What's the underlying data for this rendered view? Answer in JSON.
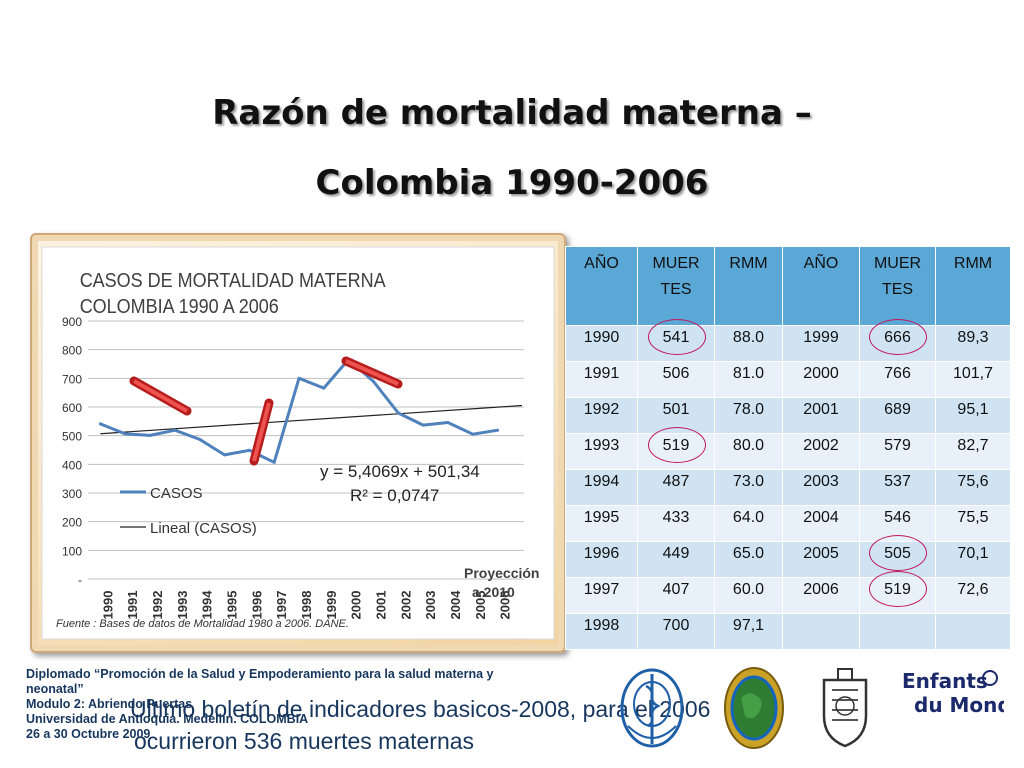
{
  "slide": {
    "title_line1": "Razón de mortalidad materna –",
    "title_line2": "Colombia 1990-2006"
  },
  "chart_data": {
    "type": "line",
    "title": "CASOS DE MORTALIDAD MATERNA COLOMBIA 1990 A 2006",
    "title_line1": "CASOS DE MORTALIDAD MATERNA",
    "title_line2": "COLOMBIA 1990 A 2006",
    "x": [
      "1990",
      "1991",
      "1992",
      "1993",
      "1994",
      "1995",
      "1996",
      "1997",
      "1998",
      "1999",
      "2000",
      "2001",
      "2002",
      "2003",
      "2004",
      "2005",
      "2006"
    ],
    "extra_x_label": "Proyección a 2010",
    "extra_x_label_lines": [
      "Proyección",
      "a 2010"
    ],
    "ylim": [
      0,
      900
    ],
    "yticks": [
      "-",
      "100",
      "200",
      "300",
      "400",
      "500",
      "600",
      "700",
      "800",
      "900"
    ],
    "grid": true,
    "series": [
      {
        "name": "CASOS",
        "color": "#4f81bd",
        "values": [
          541,
          506,
          501,
          519,
          487,
          433,
          449,
          407,
          700,
          666,
          766,
          689,
          579,
          537,
          546,
          505,
          519
        ]
      }
    ],
    "trendline": {
      "name": "Lineal (CASOS)",
      "slope": 5.4069,
      "intercept": 501.34,
      "r2": 0.0747,
      "x_end_index": 20
    },
    "equation_label": "y = 5,4069x + 501,34",
    "r2_label": "R² = 0,0747",
    "legend_position": "lower-left",
    "source_note": "Fuente : Bases de datos de Mortalidad 1980 a 2006. DANE."
  },
  "table": {
    "headers": [
      [
        "AÑO"
      ],
      [
        "MUER",
        "TES"
      ],
      [
        "RMM"
      ],
      [
        "AÑO"
      ],
      [
        "MUER",
        "TES"
      ],
      [
        "RMM"
      ]
    ],
    "rows": [
      [
        "1990",
        "541",
        "88.0",
        "1999",
        "666",
        "89,3"
      ],
      [
        "1991",
        "506",
        "81.0",
        "2000",
        "766",
        "101,7"
      ],
      [
        "1992",
        "501",
        "78.0",
        "2001",
        "689",
        "95,1"
      ],
      [
        "1993",
        "519",
        "80.0",
        "2002",
        "579",
        "82,7"
      ],
      [
        "1994",
        "487",
        "73.0",
        "2003",
        "537",
        "75,6"
      ],
      [
        "1995",
        "433",
        "64.0",
        "2004",
        "546",
        "75,5"
      ],
      [
        "1996",
        "449",
        "65.0",
        "2005",
        "505",
        "70,1"
      ],
      [
        "1997",
        "407",
        "60.0",
        "2006",
        "519",
        "72,6"
      ],
      [
        "1998",
        "700",
        "97,1",
        "",
        ""
      ]
    ],
    "highlight_color": "#c2185b"
  },
  "footer": {
    "course_lines": [
      "Diplomado “Promoción de la Salud y Empoderamiento para la salud materna y",
      "neonatal”",
      "Modulo 2: Abriendo Puertas",
      "Universidad de Antioquia. Medellín. COLOMBIA",
      "26 a 30 Octubre 2009"
    ],
    "bulletin_line1": "Ultimo boletín de indicadores basicos-2008, para el 2006",
    "bulletin_line2": "ocurrieron 536 muertes maternas"
  },
  "logos": {
    "who": "who-emblem-icon",
    "globe": "globe-seal-icon",
    "university": "university-crest-icon",
    "enfants": "Enfants du Monde"
  }
}
